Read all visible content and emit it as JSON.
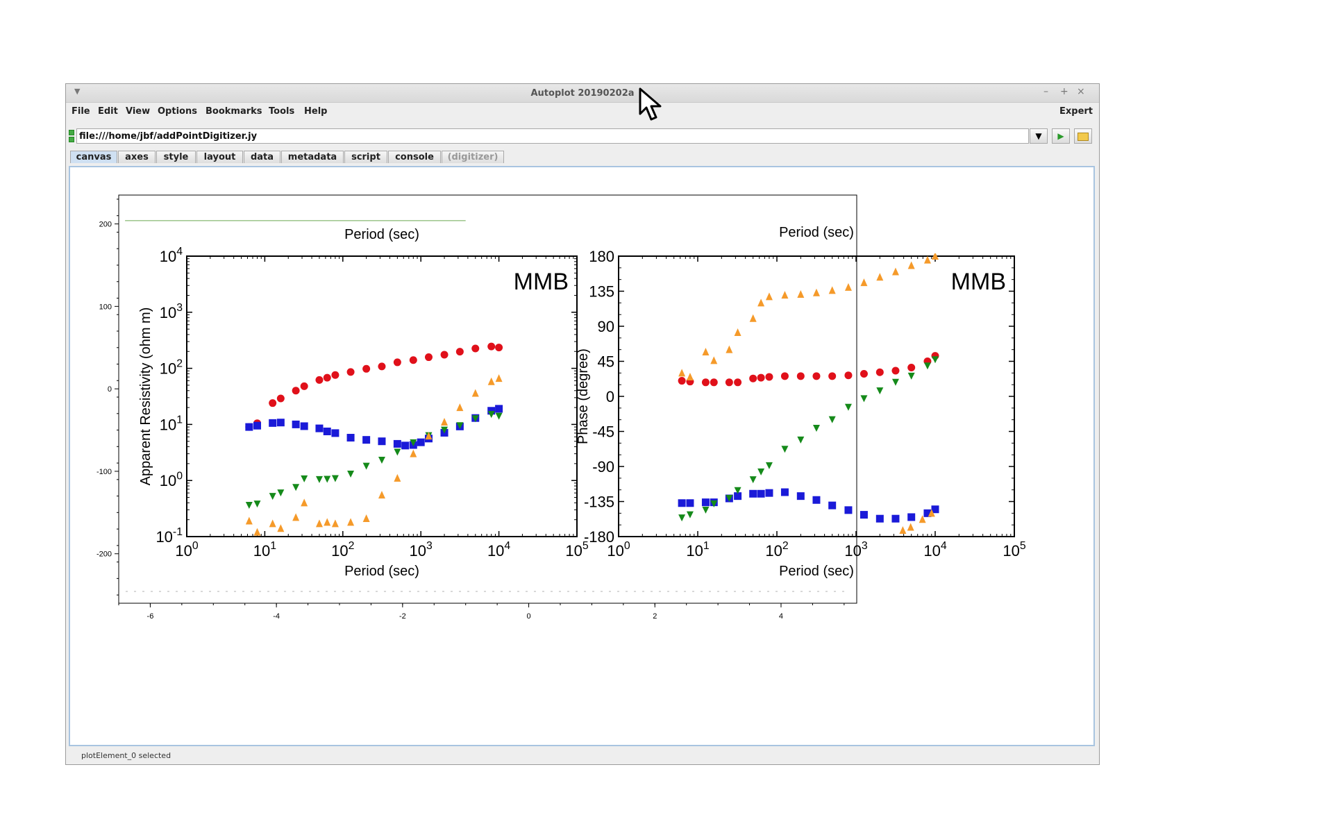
{
  "window": {
    "title": "Autoplot 20190202a",
    "controls": [
      "–",
      "+",
      "×"
    ]
  },
  "menubar": {
    "items": [
      "File",
      "Edit",
      "View",
      "Options",
      "Bookmarks",
      "Tools",
      "Help"
    ],
    "expert": "Expert"
  },
  "url": {
    "value": "file:///home/jbf/addPointDigitizer.jy"
  },
  "tabs": [
    "canvas",
    "axes",
    "style",
    "layout",
    "data",
    "metadata",
    "script",
    "console",
    "(digitizer)"
  ],
  "status": "plotElement_0 selected",
  "colors": {
    "red": "#e0101a",
    "blue": "#1a1ad8",
    "green": "#158a1a",
    "orange": "#f59a2a",
    "tab_active": "#cfe0f2",
    "canvas_border": "#a8c4e0"
  },
  "chart_data": [
    {
      "type": "scatter",
      "title": "",
      "xlabel": "",
      "ylabel": "",
      "xlim": [
        -6.5,
        5.2
      ],
      "ylim": [
        -260,
        235
      ],
      "x_ticks": [
        "-6",
        "-4",
        "-2",
        "0",
        "2",
        "4"
      ],
      "y_ticks": [
        "200",
        "100",
        "0",
        "-100",
        "-200"
      ],
      "series": [
        {
          "values": [
            [
              -6.4,
              204.0
            ],
            [
              -1.0,
              204.0
            ]
          ]
        }
      ]
    },
    {
      "type": "scatter",
      "title": "MMB",
      "xlabel": "Period (sec)",
      "ylabel": "Apparent Resistivity (ohm m)",
      "xscale": "log",
      "yscale": "log",
      "xlim": [
        1,
        100000
      ],
      "ylim": [
        0.1,
        10000
      ],
      "x_ticks": [
        "10^0",
        "10^1",
        "10^2",
        "10^3",
        "10^4",
        "10^5"
      ],
      "y_ticks": [
        "10^-1",
        "10^0",
        "10^1",
        "10^2",
        "10^3",
        "10^4"
      ],
      "series": [
        {
          "color": "red",
          "marker": "circle",
          "x": [
            6.3,
            8,
            12.6,
            16,
            25,
            32,
            50,
            63,
            80,
            126,
            200,
            316,
            500,
            800,
            1260,
            2000,
            3160,
            5000,
            8000,
            10000
          ],
          "y": [
            9,
            10.5,
            24,
            29,
            40,
            48,
            62,
            68,
            76,
            86,
            98,
            108,
            128,
            140,
            158,
            175,
            198,
            226,
            245,
            235
          ]
        },
        {
          "color": "blue",
          "marker": "square",
          "x": [
            6.3,
            8,
            12.6,
            16,
            25,
            32,
            50,
            63,
            80,
            126,
            200,
            316,
            500,
            630,
            800,
            1000,
            1260,
            2000,
            3160,
            5000,
            8000,
            10000
          ],
          "y": [
            9,
            9.5,
            10.6,
            10.8,
            10,
            9.3,
            8.5,
            7.5,
            7,
            5.8,
            5.3,
            5,
            4.5,
            4.2,
            4.3,
            4.8,
            5.6,
            7.1,
            9.2,
            13,
            17.5,
            19
          ]
        },
        {
          "color": "green",
          "marker": "triangle-down",
          "x": [
            6.3,
            8,
            12.6,
            16,
            25,
            32,
            50,
            63,
            80,
            126,
            200,
            316,
            500,
            800,
            1260,
            2000,
            3160,
            5000,
            8000,
            10000
          ],
          "y": [
            0.36,
            0.38,
            0.52,
            0.6,
            0.75,
            1.07,
            1.04,
            1.05,
            1.08,
            1.3,
            1.8,
            2.3,
            3.2,
            4.7,
            6.3,
            7.9,
            9.5,
            12.6,
            15,
            14
          ]
        },
        {
          "color": "orange",
          "marker": "triangle-up",
          "x": [
            6.3,
            8,
            12.6,
            16,
            25,
            32,
            50,
            63,
            80,
            126,
            200,
            316,
            500,
            800,
            1260,
            2000,
            3160,
            5000,
            8000,
            10000
          ],
          "y": [
            0.19,
            0.12,
            0.17,
            0.14,
            0.22,
            0.4,
            0.17,
            0.18,
            0.17,
            0.18,
            0.21,
            0.55,
            1.1,
            3,
            6.2,
            11,
            20,
            36,
            58,
            66
          ]
        }
      ]
    },
    {
      "type": "scatter",
      "title": "MMB",
      "xlabel": "Period (sec)",
      "ylabel": "Phase (degree)",
      "xscale": "log",
      "xlim": [
        1,
        100000
      ],
      "ylim": [
        -180,
        180
      ],
      "x_ticks": [
        "10^0",
        "10^1",
        "10^2",
        "10^3",
        "10^4",
        "10^5"
      ],
      "y_ticks": [
        "180",
        "135",
        "90",
        "45",
        "0",
        "-45",
        "-90",
        "-135",
        "-180"
      ],
      "series": [
        {
          "color": "red",
          "marker": "circle",
          "x": [
            6.3,
            8,
            12.6,
            16,
            25,
            32,
            50,
            63,
            80,
            126,
            200,
            316,
            500,
            800,
            1260,
            2000,
            3160,
            5000,
            8000,
            10000
          ],
          "y": [
            20,
            19,
            18,
            18,
            18,
            18,
            23,
            24,
            25,
            26,
            26,
            26,
            26,
            27,
            29,
            31,
            33,
            37,
            45,
            52
          ]
        },
        {
          "color": "blue",
          "marker": "square",
          "x": [
            6.3,
            8,
            12.6,
            16,
            25,
            32,
            50,
            63,
            80,
            126,
            200,
            316,
            500,
            800,
            1260,
            2000,
            3160,
            5000,
            8000,
            10000
          ],
          "y": [
            -137,
            -137,
            -136,
            -136,
            -131,
            -128,
            -125,
            -125,
            -124,
            -123,
            -128,
            -133,
            -140,
            -146,
            -152,
            -157,
            -157,
            -155,
            -150,
            -145
          ]
        },
        {
          "color": "green",
          "marker": "triangle-down",
          "x": [
            6.3,
            8,
            12.6,
            16,
            25,
            32,
            50,
            63,
            80,
            126,
            200,
            316,
            500,
            800,
            1260,
            2000,
            3160,
            5000,
            8000,
            10000
          ],
          "y": [
            -156,
            -152,
            -146,
            -138,
            -131,
            -121,
            -107,
            -97,
            -89,
            -68,
            -56,
            -41,
            -30,
            -14,
            -3,
            7,
            18,
            26,
            39,
            47
          ]
        },
        {
          "color": "orange",
          "marker": "triangle-up",
          "x": [
            6.3,
            8,
            12.6,
            16,
            25,
            32,
            50,
            63,
            80,
            126,
            200,
            316,
            500,
            800,
            1260,
            2000,
            3160,
            5000,
            8000,
            10000
          ],
          "y": [
            30,
            25,
            57,
            46,
            60,
            82,
            100,
            120,
            128,
            130,
            131,
            133,
            136,
            140,
            146,
            153,
            160,
            168,
            175,
            180
          ]
        },
        {
          "color": "orange",
          "marker": "triangle-up",
          "x": [
            3900,
            4900,
            6900,
            9000
          ],
          "y": [
            -172,
            -168,
            -158,
            -150
          ]
        }
      ]
    }
  ]
}
